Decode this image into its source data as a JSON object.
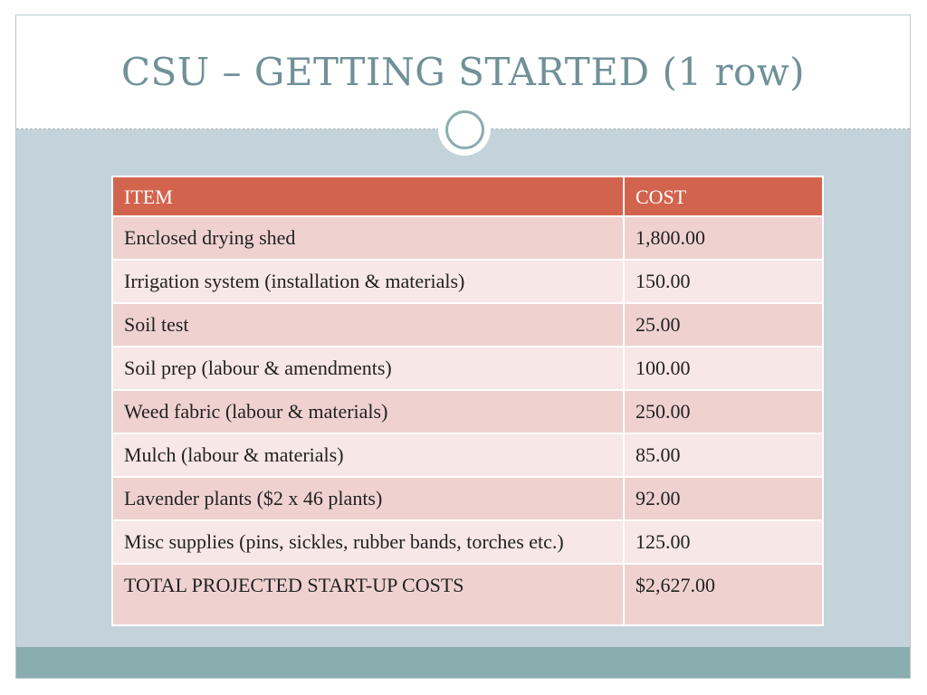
{
  "slide": {
    "title": "CSU – GETTING STARTED (1 row)"
  },
  "table": {
    "headers": {
      "item": "ITEM",
      "cost": "COST"
    },
    "rows": [
      {
        "item": "Enclosed drying shed",
        "cost": "1,800.00"
      },
      {
        "item": "Irrigation system (installation & materials)",
        "cost": "150.00"
      },
      {
        "item": "Soil test",
        "cost": "25.00"
      },
      {
        "item": "Soil prep (labour & amendments)",
        "cost": "100.00"
      },
      {
        "item": "Weed fabric (labour & materials)",
        "cost": "250.00"
      },
      {
        "item": "Mulch (labour & materials)",
        "cost": "85.00"
      },
      {
        "item": "Lavender plants ($2 x 46 plants)",
        "cost": "92.00"
      },
      {
        "item": "Misc supplies (pins, sickles, rubber bands, torches etc.)",
        "cost": "125.00"
      }
    ],
    "total": {
      "item": "TOTAL PROJECTED START-UP COSTS",
      "cost": "$2,627.00"
    }
  },
  "colors": {
    "title": "#6f9197",
    "header_bg": "#d2644e",
    "row_odd_bg": "#efd2d0",
    "row_even_bg": "#f7e7e6",
    "content_bg": "#c4d2d9",
    "footer_bg": "#8aadaf"
  }
}
